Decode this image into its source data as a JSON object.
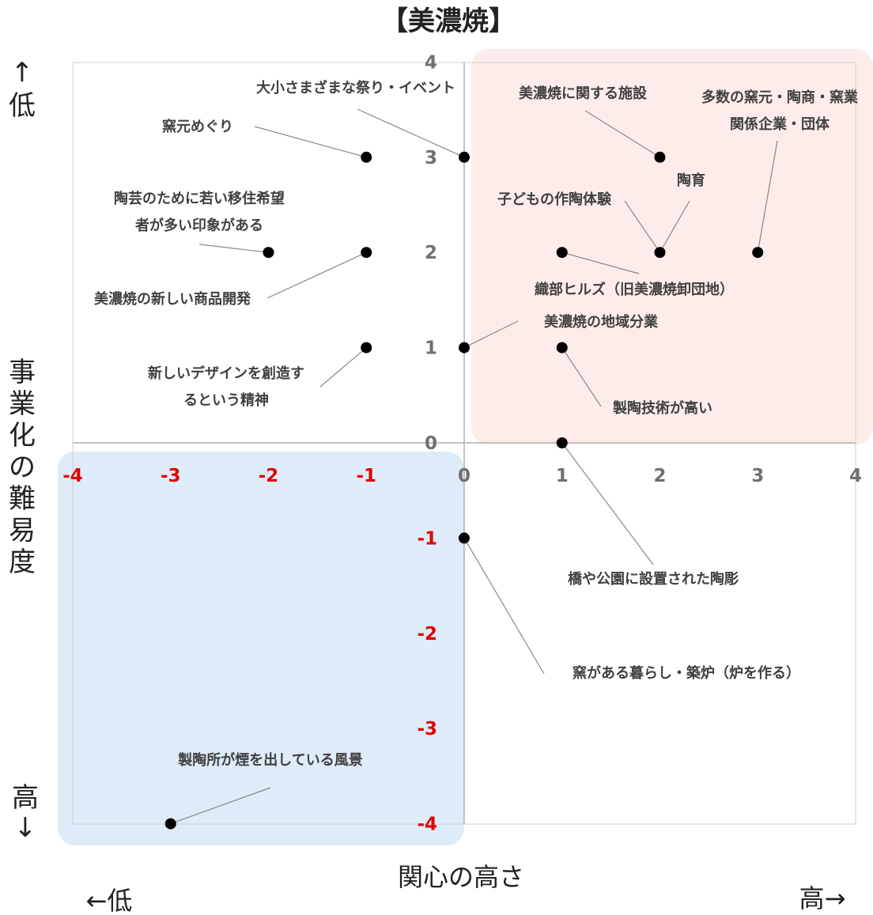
{
  "chart_data": {
    "type": "scatter",
    "title": "【美濃焼】",
    "xlabel": "関心の高さ",
    "x_low_label": "←低",
    "x_high_label": "高→",
    "ylabel": "事業化の難易度",
    "y_top_label": [
      "↑",
      "低"
    ],
    "y_bottom_label": [
      "高",
      "↓"
    ],
    "xlim": [
      -4,
      4
    ],
    "ylim": [
      -4,
      4
    ],
    "y_axis_direction": "up = low difficulty",
    "x_ticks": [
      "-4",
      "-3",
      "-2",
      "-1",
      "0",
      "1",
      "2",
      "3",
      "4"
    ],
    "y_ticks": [
      "4",
      "3",
      "2",
      "1",
      "0",
      "-1",
      "-2",
      "-3",
      "-4"
    ],
    "grid": false,
    "highlight_regions": [
      {
        "quadrant": "upper-right",
        "color": "#fdecea"
      },
      {
        "quadrant": "lower-left",
        "color": "#deebf9"
      }
    ],
    "points": [
      {
        "x": -1,
        "y": 3,
        "label": [
          "窯元めぐり"
        ]
      },
      {
        "x": 0,
        "y": 3,
        "label": [
          "大小さまざまな祭り・イベント"
        ]
      },
      {
        "x": 2,
        "y": 3,
        "label": [
          "美濃焼に関する施設"
        ]
      },
      {
        "x": 3,
        "y": 2,
        "label": [
          "多数の窯元・陶商・窯業",
          "関係企業・団体"
        ]
      },
      {
        "x": 2,
        "y": 2,
        "label": [
          "陶育"
        ]
      },
      {
        "x": 2,
        "y": 2,
        "label": [
          "子どもの作陶体験"
        ]
      },
      {
        "x": -2,
        "y": 2,
        "label": [
          "陶芸のために若い移住希望",
          "者が多い印象がある"
        ]
      },
      {
        "x": -1,
        "y": 2,
        "label": [
          "美濃焼の新しい商品開発"
        ]
      },
      {
        "x": 1,
        "y": 2,
        "label": [
          "織部ヒルズ（旧美濃焼卸団地）"
        ]
      },
      {
        "x": 0,
        "y": 1,
        "label": [
          "美濃焼の地域分業"
        ]
      },
      {
        "x": -1,
        "y": 1,
        "label": [
          "新しいデザインを創造す",
          "るという精神"
        ]
      },
      {
        "x": 1,
        "y": 1,
        "label": [
          "製陶技術が高い"
        ]
      },
      {
        "x": 1,
        "y": 0,
        "label": [
          "橋や公園に設置された陶彫"
        ]
      },
      {
        "x": 0,
        "y": -1,
        "label": [
          "窯がある暮らし・築炉（炉を作る）"
        ]
      },
      {
        "x": -3,
        "y": -4,
        "label": [
          "製陶所が煙を出している風景"
        ]
      }
    ]
  }
}
